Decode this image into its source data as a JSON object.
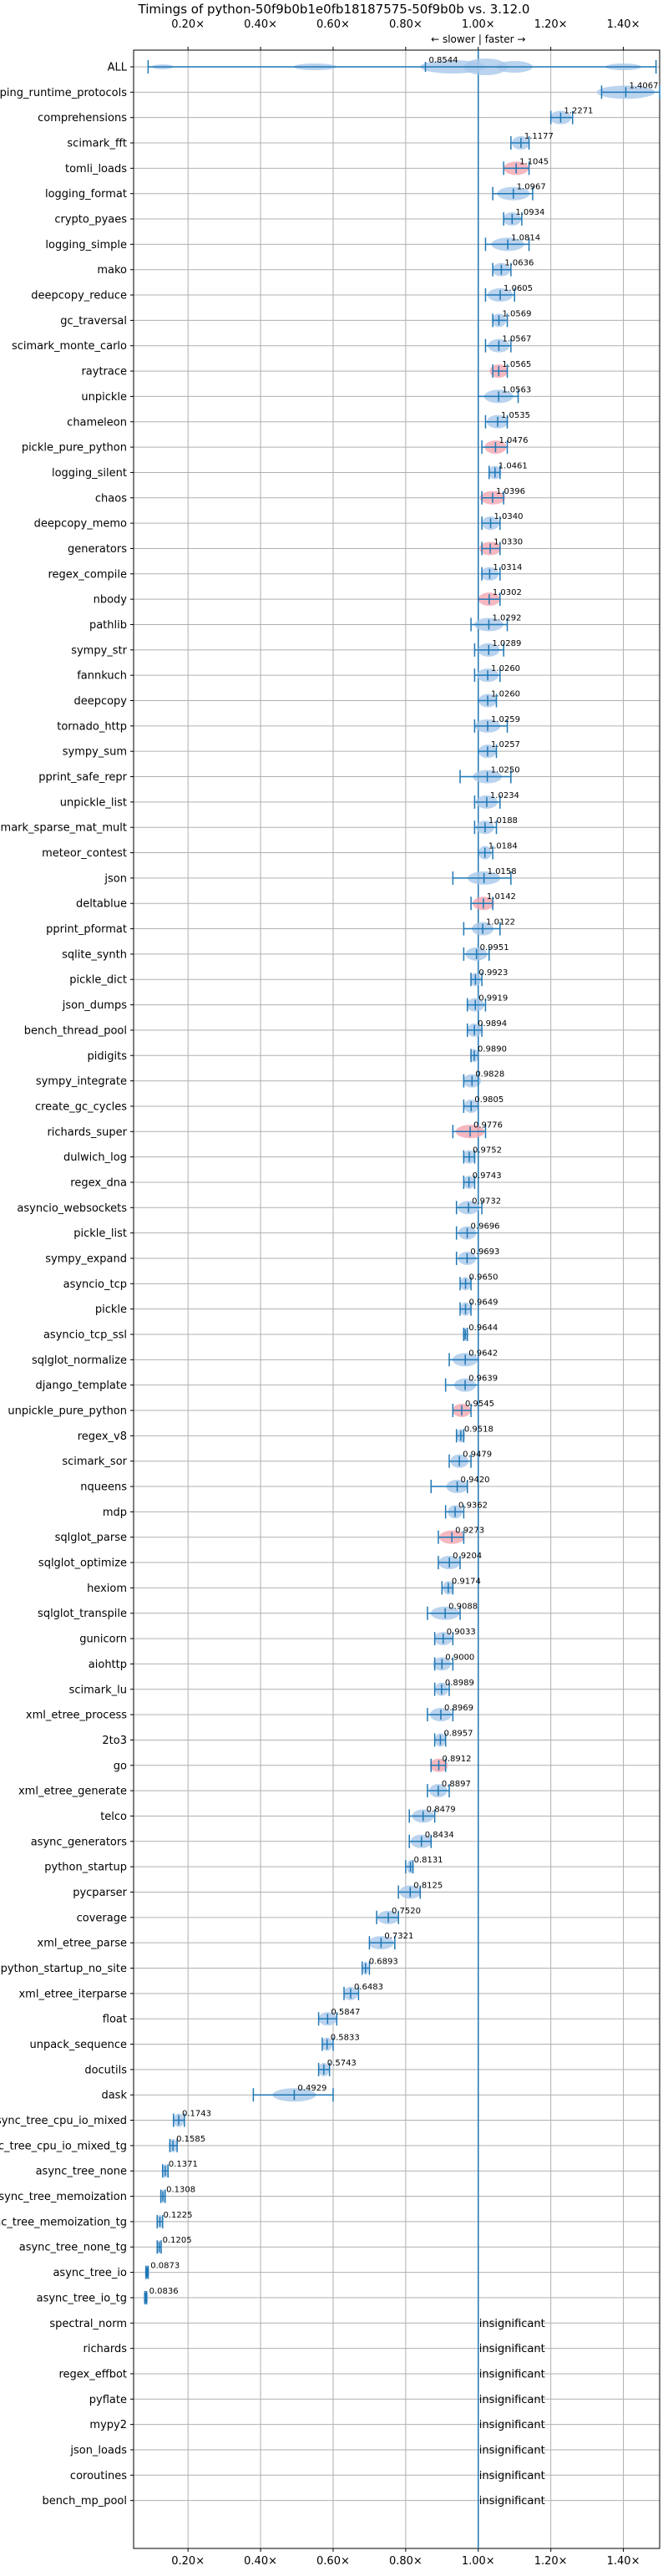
{
  "chart_data": {
    "type": "violin",
    "title": "Timings of python-50f9b0b1e0fb18187575-50f9b0b vs. 3.12.0",
    "direction_label": "← slower | faster →",
    "xlim": [
      0.05,
      1.5
    ],
    "xticks": [
      0.2,
      0.4,
      0.6,
      0.8,
      1.0,
      1.2,
      1.4
    ],
    "xtick_labels": [
      "0.20×",
      "0.40×",
      "0.60×",
      "0.80×",
      "1.00×",
      "1.20×",
      "1.40×"
    ],
    "reference_line": 1.0,
    "grid": true,
    "colors": {
      "normal": "#a9c8ea",
      "highlight": "#f4a6b0",
      "line": "#1f77b4"
    },
    "benchmarks": [
      {
        "name": "ALL",
        "value": 0.8544,
        "label": "0.8544",
        "min": 0.09,
        "max": 1.49,
        "spread": 0.07,
        "highlight": false
      },
      {
        "name": "typing_runtime_protocols",
        "value": 1.4067,
        "label": "1.4067",
        "min": 1.34,
        "max": 1.5,
        "spread": 0.08,
        "highlight": false
      },
      {
        "name": "comprehensions",
        "value": 1.2271,
        "label": "1.2271",
        "min": 1.2,
        "max": 1.26,
        "spread": 0.03,
        "highlight": false
      },
      {
        "name": "scimark_fft",
        "value": 1.1177,
        "label": "1.1177",
        "min": 1.09,
        "max": 1.14,
        "spread": 0.025,
        "highlight": false
      },
      {
        "name": "tomli_loads",
        "value": 1.1045,
        "label": "1.1045",
        "min": 1.07,
        "max": 1.14,
        "spread": 0.035,
        "highlight": true
      },
      {
        "name": "logging_format",
        "value": 1.0967,
        "label": "1.0967",
        "min": 1.04,
        "max": 1.15,
        "spread": 0.045,
        "highlight": false
      },
      {
        "name": "crypto_pyaes",
        "value": 1.0934,
        "label": "1.0934",
        "min": 1.07,
        "max": 1.12,
        "spread": 0.025,
        "highlight": false
      },
      {
        "name": "logging_simple",
        "value": 1.0814,
        "label": "1.0814",
        "min": 1.02,
        "max": 1.14,
        "spread": 0.045,
        "highlight": false
      },
      {
        "name": "mako",
        "value": 1.0636,
        "label": "1.0636",
        "min": 1.04,
        "max": 1.09,
        "spread": 0.025,
        "highlight": false
      },
      {
        "name": "deepcopy_reduce",
        "value": 1.0605,
        "label": "1.0605",
        "min": 1.02,
        "max": 1.1,
        "spread": 0.035,
        "highlight": false
      },
      {
        "name": "gc_traversal",
        "value": 1.0569,
        "label": "1.0569",
        "min": 1.04,
        "max": 1.08,
        "spread": 0.02,
        "highlight": false
      },
      {
        "name": "scimark_monte_carlo",
        "value": 1.0567,
        "label": "1.0567",
        "min": 1.02,
        "max": 1.09,
        "spread": 0.03,
        "highlight": false
      },
      {
        "name": "raytrace",
        "value": 1.0565,
        "label": "1.0565",
        "min": 1.04,
        "max": 1.08,
        "spread": 0.025,
        "highlight": true
      },
      {
        "name": "unpickle",
        "value": 1.0563,
        "label": "1.0563",
        "min": 1.0,
        "max": 1.11,
        "spread": 0.04,
        "highlight": false
      },
      {
        "name": "chameleon",
        "value": 1.0535,
        "label": "1.0535",
        "min": 1.02,
        "max": 1.08,
        "spread": 0.03,
        "highlight": false
      },
      {
        "name": "pickle_pure_python",
        "value": 1.0476,
        "label": "1.0476",
        "min": 1.01,
        "max": 1.08,
        "spread": 0.03,
        "highlight": true
      },
      {
        "name": "logging_silent",
        "value": 1.0461,
        "label": "1.0461",
        "min": 1.03,
        "max": 1.06,
        "spread": 0.018,
        "highlight": false
      },
      {
        "name": "chaos",
        "value": 1.0396,
        "label": "1.0396",
        "min": 1.01,
        "max": 1.07,
        "spread": 0.035,
        "highlight": true
      },
      {
        "name": "deepcopy_memo",
        "value": 1.034,
        "label": "1.0340",
        "min": 1.01,
        "max": 1.06,
        "spread": 0.025,
        "highlight": false
      },
      {
        "name": "generators",
        "value": 1.033,
        "label": "1.0330",
        "min": 1.01,
        "max": 1.06,
        "spread": 0.03,
        "highlight": true
      },
      {
        "name": "regex_compile",
        "value": 1.0314,
        "label": "1.0314",
        "min": 1.01,
        "max": 1.06,
        "spread": 0.025,
        "highlight": false
      },
      {
        "name": "nbody",
        "value": 1.0302,
        "label": "1.0302",
        "min": 1.0,
        "max": 1.06,
        "spread": 0.03,
        "highlight": true
      },
      {
        "name": "pathlib",
        "value": 1.0292,
        "label": "1.0292",
        "min": 0.98,
        "max": 1.08,
        "spread": 0.04,
        "highlight": false
      },
      {
        "name": "sympy_str",
        "value": 1.0289,
        "label": "1.0289",
        "min": 0.99,
        "max": 1.07,
        "spread": 0.03,
        "highlight": false
      },
      {
        "name": "fannkuch",
        "value": 1.026,
        "label": "1.0260",
        "min": 0.99,
        "max": 1.06,
        "spread": 0.03,
        "highlight": false
      },
      {
        "name": "deepcopy",
        "value": 1.026,
        "label": "1.0260",
        "min": 1.0,
        "max": 1.05,
        "spread": 0.025,
        "highlight": false
      },
      {
        "name": "tornado_http",
        "value": 1.0259,
        "label": "1.0259",
        "min": 0.99,
        "max": 1.08,
        "spread": 0.035,
        "highlight": false
      },
      {
        "name": "sympy_sum",
        "value": 1.0257,
        "label": "1.0257",
        "min": 1.0,
        "max": 1.05,
        "spread": 0.025,
        "highlight": false
      },
      {
        "name": "pprint_safe_repr",
        "value": 1.025,
        "label": "1.0250",
        "min": 0.95,
        "max": 1.09,
        "spread": 0.04,
        "highlight": false
      },
      {
        "name": "unpickle_list",
        "value": 1.0234,
        "label": "1.0234",
        "min": 0.99,
        "max": 1.06,
        "spread": 0.03,
        "highlight": false
      },
      {
        "name": "scimark_sparse_mat_mult",
        "value": 1.0188,
        "label": "1.0188",
        "min": 0.99,
        "max": 1.05,
        "spread": 0.025,
        "highlight": false
      },
      {
        "name": "meteor_contest",
        "value": 1.0184,
        "label": "1.0184",
        "min": 1.0,
        "max": 1.04,
        "spread": 0.018,
        "highlight": false
      },
      {
        "name": "json",
        "value": 1.0158,
        "label": "1.0158",
        "min": 0.93,
        "max": 1.09,
        "spread": 0.045,
        "highlight": false
      },
      {
        "name": "deltablue",
        "value": 1.0142,
        "label": "1.0142",
        "min": 0.98,
        "max": 1.04,
        "spread": 0.03,
        "highlight": true
      },
      {
        "name": "pprint_pformat",
        "value": 1.0122,
        "label": "1.0122",
        "min": 0.96,
        "max": 1.06,
        "spread": 0.03,
        "highlight": false
      },
      {
        "name": "sqlite_synth",
        "value": 0.9951,
        "label": "0.9951",
        "min": 0.96,
        "max": 1.03,
        "spread": 0.03,
        "highlight": false
      },
      {
        "name": "pickle_dict",
        "value": 0.9923,
        "label": "0.9923",
        "min": 0.98,
        "max": 1.01,
        "spread": 0.015,
        "highlight": false
      },
      {
        "name": "json_dumps",
        "value": 0.9919,
        "label": "0.9919",
        "min": 0.97,
        "max": 1.02,
        "spread": 0.025,
        "highlight": false
      },
      {
        "name": "bench_thread_pool",
        "value": 0.9894,
        "label": "0.9894",
        "min": 0.97,
        "max": 1.01,
        "spread": 0.02,
        "highlight": false
      },
      {
        "name": "pidigits",
        "value": 0.989,
        "label": "0.9890",
        "min": 0.98,
        "max": 1.0,
        "spread": 0.012,
        "highlight": false
      },
      {
        "name": "sympy_integrate",
        "value": 0.9828,
        "label": "0.9828",
        "min": 0.96,
        "max": 1.0,
        "spread": 0.025,
        "highlight": false
      },
      {
        "name": "create_gc_cycles",
        "value": 0.9805,
        "label": "0.9805",
        "min": 0.96,
        "max": 1.0,
        "spread": 0.02,
        "highlight": false
      },
      {
        "name": "richards_super",
        "value": 0.9776,
        "label": "0.9776",
        "min": 0.93,
        "max": 1.02,
        "spread": 0.04,
        "highlight": true
      },
      {
        "name": "dulwich_log",
        "value": 0.9752,
        "label": "0.9752",
        "min": 0.96,
        "max": 0.99,
        "spread": 0.018,
        "highlight": false
      },
      {
        "name": "regex_dna",
        "value": 0.9743,
        "label": "0.9743",
        "min": 0.96,
        "max": 0.99,
        "spread": 0.015,
        "highlight": false
      },
      {
        "name": "asyncio_websockets",
        "value": 0.9732,
        "label": "0.9732",
        "min": 0.94,
        "max": 1.01,
        "spread": 0.03,
        "highlight": false
      },
      {
        "name": "pickle_list",
        "value": 0.9696,
        "label": "0.9696",
        "min": 0.94,
        "max": 1.0,
        "spread": 0.025,
        "highlight": false
      },
      {
        "name": "sympy_expand",
        "value": 0.9693,
        "label": "0.9693",
        "min": 0.94,
        "max": 1.0,
        "spread": 0.025,
        "highlight": false
      },
      {
        "name": "asyncio_tcp",
        "value": 0.965,
        "label": "0.9650",
        "min": 0.95,
        "max": 0.98,
        "spread": 0.015,
        "highlight": false
      },
      {
        "name": "pickle",
        "value": 0.9649,
        "label": "0.9649",
        "min": 0.95,
        "max": 0.98,
        "spread": 0.015,
        "highlight": false
      },
      {
        "name": "asyncio_tcp_ssl",
        "value": 0.9644,
        "label": "0.9644",
        "min": 0.96,
        "max": 0.97,
        "spread": 0.008,
        "highlight": false
      },
      {
        "name": "sqlglot_normalize",
        "value": 0.9642,
        "label": "0.9642",
        "min": 0.92,
        "max": 1.0,
        "spread": 0.035,
        "highlight": false
      },
      {
        "name": "django_template",
        "value": 0.9639,
        "label": "0.9639",
        "min": 0.91,
        "max": 1.0,
        "spread": 0.03,
        "highlight": false
      },
      {
        "name": "unpickle_pure_python",
        "value": 0.9545,
        "label": "0.9545",
        "min": 0.93,
        "max": 0.98,
        "spread": 0.025,
        "highlight": true
      },
      {
        "name": "regex_v8",
        "value": 0.9518,
        "label": "0.9518",
        "min": 0.94,
        "max": 0.96,
        "spread": 0.012,
        "highlight": false
      },
      {
        "name": "scimark_sor",
        "value": 0.9479,
        "label": "0.9479",
        "min": 0.92,
        "max": 0.98,
        "spread": 0.025,
        "highlight": false
      },
      {
        "name": "nqueens",
        "value": 0.942,
        "label": "0.9420",
        "min": 0.87,
        "max": 0.97,
        "spread": 0.03,
        "highlight": false
      },
      {
        "name": "mdp",
        "value": 0.9362,
        "label": "0.9362",
        "min": 0.91,
        "max": 0.96,
        "spread": 0.02,
        "highlight": false
      },
      {
        "name": "sqlglot_parse",
        "value": 0.9273,
        "label": "0.9273",
        "min": 0.89,
        "max": 0.96,
        "spread": 0.035,
        "highlight": true
      },
      {
        "name": "sqlglot_optimize",
        "value": 0.9204,
        "label": "0.9204",
        "min": 0.89,
        "max": 0.95,
        "spread": 0.03,
        "highlight": false
      },
      {
        "name": "hexiom",
        "value": 0.9174,
        "label": "0.9174",
        "min": 0.9,
        "max": 0.93,
        "spread": 0.015,
        "highlight": false
      },
      {
        "name": "sqlglot_transpile",
        "value": 0.9088,
        "label": "0.9088",
        "min": 0.86,
        "max": 0.95,
        "spread": 0.04,
        "highlight": false
      },
      {
        "name": "gunicorn",
        "value": 0.9033,
        "label": "0.9033",
        "min": 0.88,
        "max": 0.93,
        "spread": 0.025,
        "highlight": false
      },
      {
        "name": "aiohttp",
        "value": 0.9,
        "label": "0.9000",
        "min": 0.88,
        "max": 0.93,
        "spread": 0.025,
        "highlight": false
      },
      {
        "name": "scimark_lu",
        "value": 0.8989,
        "label": "0.8989",
        "min": 0.88,
        "max": 0.92,
        "spread": 0.018,
        "highlight": false
      },
      {
        "name": "xml_etree_process",
        "value": 0.8969,
        "label": "0.8969",
        "min": 0.86,
        "max": 0.93,
        "spread": 0.03,
        "highlight": false
      },
      {
        "name": "2to3",
        "value": 0.8957,
        "label": "0.8957",
        "min": 0.88,
        "max": 0.91,
        "spread": 0.015,
        "highlight": false
      },
      {
        "name": "go",
        "value": 0.8912,
        "label": "0.8912",
        "min": 0.87,
        "max": 0.91,
        "spread": 0.025,
        "highlight": true
      },
      {
        "name": "xml_etree_generate",
        "value": 0.8897,
        "label": "0.8897",
        "min": 0.86,
        "max": 0.92,
        "spread": 0.025,
        "highlight": false
      },
      {
        "name": "telco",
        "value": 0.8479,
        "label": "0.8479",
        "min": 0.81,
        "max": 0.88,
        "spread": 0.03,
        "highlight": false
      },
      {
        "name": "async_generators",
        "value": 0.8434,
        "label": "0.8434",
        "min": 0.81,
        "max": 0.87,
        "spread": 0.03,
        "highlight": false
      },
      {
        "name": "python_startup",
        "value": 0.8131,
        "label": "0.8131",
        "min": 0.8,
        "max": 0.82,
        "spread": 0.01,
        "highlight": false
      },
      {
        "name": "pycparser",
        "value": 0.8125,
        "label": "0.8125",
        "min": 0.78,
        "max": 0.84,
        "spread": 0.03,
        "highlight": false
      },
      {
        "name": "coverage",
        "value": 0.752,
        "label": "0.7520",
        "min": 0.72,
        "max": 0.78,
        "spread": 0.03,
        "highlight": false
      },
      {
        "name": "xml_etree_parse",
        "value": 0.7321,
        "label": "0.7321",
        "min": 0.7,
        "max": 0.77,
        "spread": 0.035,
        "highlight": false
      },
      {
        "name": "python_startup_no_site",
        "value": 0.6893,
        "label": "0.6893",
        "min": 0.68,
        "max": 0.7,
        "spread": 0.008,
        "highlight": false
      },
      {
        "name": "xml_etree_iterparse",
        "value": 0.6483,
        "label": "0.6483",
        "min": 0.63,
        "max": 0.67,
        "spread": 0.02,
        "highlight": false
      },
      {
        "name": "float",
        "value": 0.5847,
        "label": "0.5847",
        "min": 0.56,
        "max": 0.61,
        "spread": 0.025,
        "highlight": false
      },
      {
        "name": "unpack_sequence",
        "value": 0.5833,
        "label": "0.5833",
        "min": 0.57,
        "max": 0.6,
        "spread": 0.015,
        "highlight": false
      },
      {
        "name": "docutils",
        "value": 0.5743,
        "label": "0.5743",
        "min": 0.56,
        "max": 0.59,
        "spread": 0.015,
        "highlight": false
      },
      {
        "name": "dask",
        "value": 0.4929,
        "label": "0.4929",
        "min": 0.38,
        "max": 0.6,
        "spread": 0.06,
        "highlight": false
      },
      {
        "name": "async_tree_cpu_io_mixed",
        "value": 0.1743,
        "label": "0.1743",
        "min": 0.16,
        "max": 0.19,
        "spread": 0.015,
        "highlight": false
      },
      {
        "name": "async_tree_cpu_io_mixed_tg",
        "value": 0.1585,
        "label": "0.1585",
        "min": 0.15,
        "max": 0.17,
        "spread": 0.012,
        "highlight": false
      },
      {
        "name": "async_tree_none",
        "value": 0.1371,
        "label": "0.1371",
        "min": 0.13,
        "max": 0.145,
        "spread": 0.01,
        "highlight": false
      },
      {
        "name": "async_tree_memoization",
        "value": 0.1308,
        "label": "0.1308",
        "min": 0.125,
        "max": 0.137,
        "spread": 0.008,
        "highlight": false
      },
      {
        "name": "async_tree_memoization_tg",
        "value": 0.1225,
        "label": "0.1225",
        "min": 0.115,
        "max": 0.13,
        "spread": 0.008,
        "highlight": false
      },
      {
        "name": "async_tree_none_tg",
        "value": 0.1205,
        "label": "0.1205",
        "min": 0.115,
        "max": 0.126,
        "spread": 0.006,
        "highlight": false
      },
      {
        "name": "async_tree_io",
        "value": 0.0873,
        "label": "0.0873",
        "min": 0.084,
        "max": 0.09,
        "spread": 0.005,
        "highlight": false
      },
      {
        "name": "async_tree_io_tg",
        "value": 0.0836,
        "label": "0.0836",
        "min": 0.081,
        "max": 0.086,
        "spread": 0.005,
        "highlight": false
      },
      {
        "name": "spectral_norm",
        "label": "insignificant",
        "insignificant": true
      },
      {
        "name": "richards",
        "label": "insignificant",
        "insignificant": true
      },
      {
        "name": "regex_effbot",
        "label": "insignificant",
        "insignificant": true
      },
      {
        "name": "pyflate",
        "label": "insignificant",
        "insignificant": true
      },
      {
        "name": "mypy2",
        "label": "insignificant",
        "insignificant": true
      },
      {
        "name": "json_loads",
        "label": "insignificant",
        "insignificant": true
      },
      {
        "name": "coroutines",
        "label": "insignificant",
        "insignificant": true
      },
      {
        "name": "bench_mp_pool",
        "label": "insignificant",
        "insignificant": true
      }
    ]
  }
}
